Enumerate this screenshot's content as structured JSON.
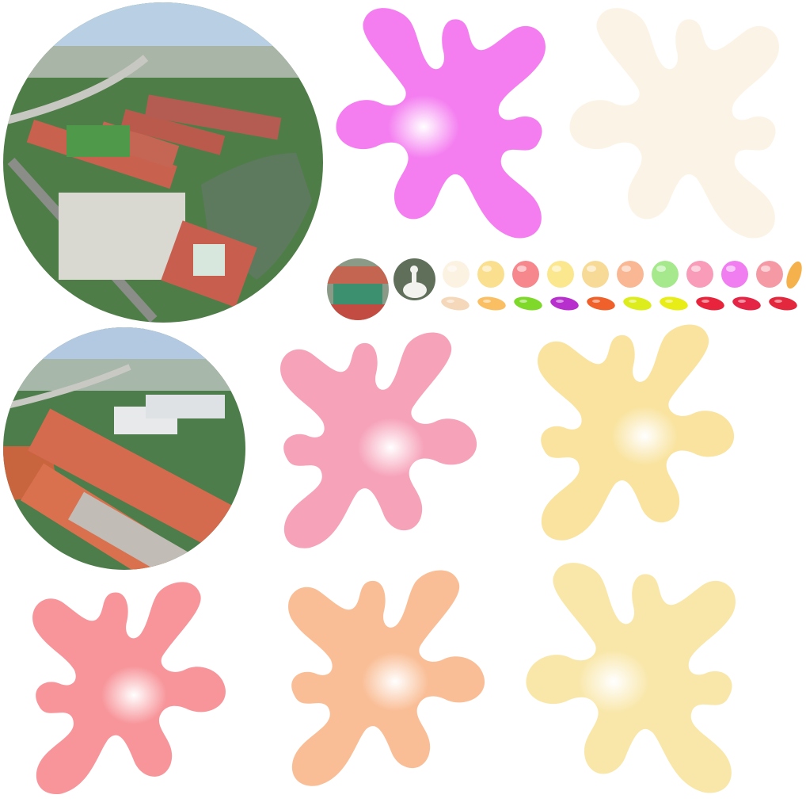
{
  "sprite_sheet": {
    "photos": [
      {
        "icon": "aerial-campus-photo-icon"
      },
      {
        "icon": "aerial-campus-photo-icon"
      },
      {
        "icon": "school-gate-photo-icon"
      },
      {
        "icon": "white-goose-photo-icon"
      }
    ],
    "splats": [
      {
        "color": "#f47ef0",
        "icon": "paint-splat-icon"
      },
      {
        "color": "#fbf4e6",
        "icon": "paint-splat-icon"
      },
      {
        "color": "#f6a2b9",
        "icon": "paint-splat-icon"
      },
      {
        "color": "#f9e39e",
        "icon": "paint-splat-icon"
      },
      {
        "color": "#f7959a",
        "icon": "paint-splat-icon"
      },
      {
        "color": "#f9be96",
        "icon": "paint-splat-icon"
      },
      {
        "color": "#f9e7a9",
        "icon": "paint-splat-icon"
      }
    ],
    "balls": [
      "#fbf2e2",
      "#f9df8e",
      "#f6878d",
      "#fbe78e",
      "#f8da97",
      "#f9b793",
      "#a6e98c",
      "#f89cb9",
      "#f07ef0",
      "#f59aa5"
    ],
    "beans": [
      "#f5d8b9",
      "#fbbf63",
      "#7ed92a",
      "#b72fcc",
      "#f0602b",
      "#dcec1d",
      "#e8ec17",
      "#e8243c",
      "#e52546",
      "#e3283d"
    ]
  }
}
